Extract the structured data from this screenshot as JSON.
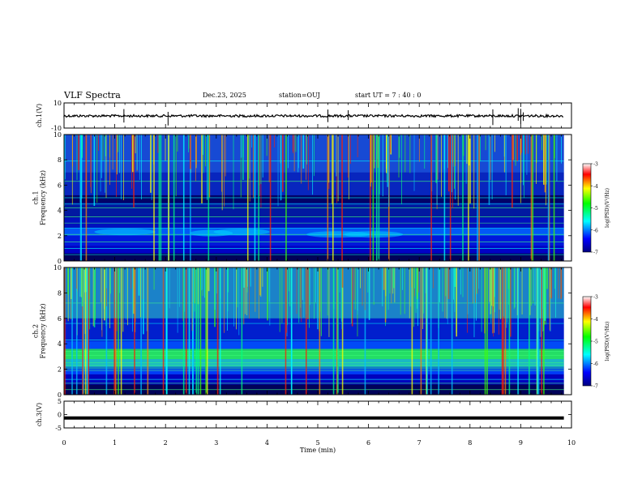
{
  "header": {
    "title": "VLF Spectra",
    "date": "Dec.23, 2025",
    "station": "station=OUJ",
    "start_ut": "start  UT =   7 : 40 : 0"
  },
  "chart_data": [
    {
      "type": "line",
      "name": "ch1-waveform",
      "ylabel": "ch.1(V)",
      "ylim": [
        -10,
        10
      ],
      "yticks": [
        "10",
        "-10"
      ],
      "xlim": [
        0,
        10
      ],
      "baseline_v": 0,
      "spike_times_min": [
        1.18,
        2.05,
        5.2,
        5.6,
        8.45,
        8.95,
        9.0,
        9.05
      ]
    },
    {
      "type": "heatmap",
      "name": "ch1-spectrogram",
      "ylabel": "ch.1\nFrequency (kHz)",
      "ylabel_lines": [
        "ch.1",
        "Frequency (kHz)"
      ],
      "xlim": [
        0,
        10
      ],
      "ylim": [
        0,
        10
      ],
      "yticks": [
        "0",
        "2",
        "4",
        "6",
        "8",
        "10"
      ],
      "colorbar": {
        "label": "log(PSD)(V²/Hz)",
        "range": [
          -7,
          -3
        ],
        "ticks": [
          "-3",
          "-4",
          "-5",
          "-6",
          "-7"
        ]
      }
    },
    {
      "type": "heatmap",
      "name": "ch2-spectrogram",
      "ylabel": "ch.2\nFrequency (kHz)",
      "ylabel_lines": [
        "ch.2",
        "Frequency (kHz)"
      ],
      "xlim": [
        0,
        10
      ],
      "ylim": [
        0,
        10
      ],
      "yticks": [
        "0",
        "2",
        "4",
        "6",
        "8",
        "10"
      ],
      "colorbar": {
        "label": "log(PSD)(V²/Hz)",
        "range": [
          -7,
          -3
        ],
        "ticks": [
          "-3",
          "-4",
          "-5",
          "-6",
          "-7"
        ]
      }
    },
    {
      "type": "line",
      "name": "ch3-waveform",
      "ylabel": "ch.3(V)",
      "ylim": [
        -5,
        5
      ],
      "yticks": [
        "5",
        "0",
        "-5"
      ],
      "xlim": [
        0,
        10
      ],
      "baseline_v": -1.3
    }
  ],
  "xaxis": {
    "label": "Time  (min)",
    "range": [
      0,
      10
    ],
    "ticks": [
      "0",
      "1",
      "2",
      "3",
      "4",
      "5",
      "6",
      "7",
      "8",
      "9",
      "10"
    ]
  },
  "colors": {
    "dark_blue": "#000080",
    "blue": "#0000ff",
    "cyan": "#00ffff",
    "green": "#00ff00",
    "yellow": "#ffff00",
    "red": "#ff0000",
    "dark_red": "#800000"
  }
}
